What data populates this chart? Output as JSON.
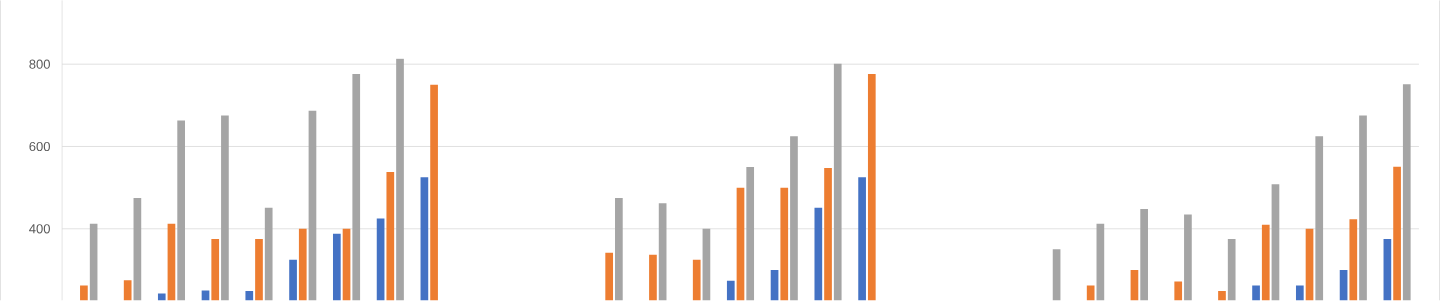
{
  "chart_data": {
    "type": "bar",
    "categories": [
      null,
      null,
      null,
      null,
      null,
      null,
      null,
      null,
      null,
      null,
      null,
      null,
      null,
      null,
      null,
      null,
      null,
      null,
      null,
      null,
      null,
      null,
      null,
      null,
      null,
      null,
      null,
      null,
      null,
      null,
      null
    ],
    "series": [
      {
        "color": "#4472c4",
        "values": [
          null,
          null,
          243,
          250,
          249,
          325,
          388,
          425,
          525,
          null,
          null,
          null,
          null,
          null,
          null,
          274,
          300,
          451,
          525,
          null,
          null,
          null,
          null,
          null,
          null,
          null,
          null,
          262,
          262,
          300,
          375
        ]
      },
      {
        "color": "#ed7d31",
        "values": [
          262,
          275,
          412,
          375,
          375,
          400,
          400,
          538,
          750,
          null,
          null,
          null,
          342,
          337,
          325,
          500,
          500,
          548,
          776,
          null,
          null,
          null,
          null,
          262,
          300,
          272,
          249,
          410,
          400,
          423,
          551
        ]
      },
      {
        "color": "#a5a5a5",
        "values": [
          412,
          475,
          663,
          675,
          451,
          687,
          776,
          813,
          null,
          null,
          null,
          null,
          475,
          462,
          400,
          550,
          625,
          801,
          null,
          null,
          null,
          null,
          350,
          412,
          448,
          435,
          375,
          508,
          625,
          675,
          751
        ]
      }
    ],
    "ylim": [
      226,
      955
    ],
    "yticks": [
      400,
      600,
      800
    ],
    "grid": "y"
  }
}
